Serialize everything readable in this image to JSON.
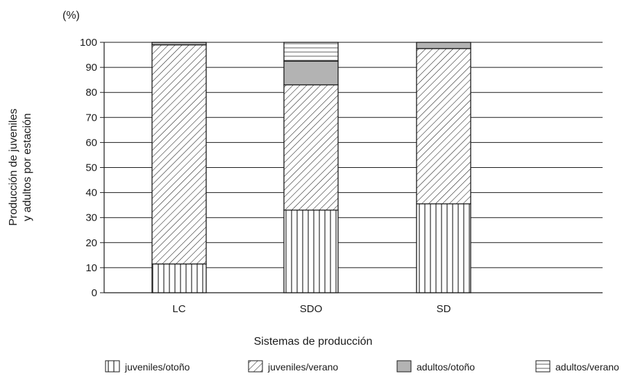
{
  "chart_data": {
    "type": "bar",
    "stacked": true,
    "categories": [
      "LC",
      "SDO",
      "SD"
    ],
    "series": [
      {
        "name": "juveniles/otoño",
        "pattern": "vertical-lines",
        "values": [
          11.5,
          33,
          35.5
        ]
      },
      {
        "name": "juveniles/verano",
        "pattern": "diagonal-lines",
        "values": [
          87.5,
          50,
          62
        ]
      },
      {
        "name": "adultos/otoño",
        "pattern": "solid-gray",
        "values": [
          1,
          9.5,
          2.5
        ]
      },
      {
        "name": "adultos/verano",
        "pattern": "horizontal-lines",
        "values": [
          0,
          7.5,
          0
        ]
      }
    ],
    "unit_label": "(%)",
    "xlabel": "Sistemas de producción",
    "ylabel_lines": [
      "Producción de juveniles",
      "y adultos por estación"
    ],
    "ylim": [
      0,
      100
    ],
    "yticks": [
      0,
      10,
      20,
      30,
      40,
      50,
      60,
      70,
      80,
      90,
      100
    ],
    "grid": true,
    "legend_position": "bottom"
  },
  "colors": {
    "axis": "#1a1a1a",
    "gray_fill": "#b3b3b3",
    "background": "#ffffff"
  }
}
